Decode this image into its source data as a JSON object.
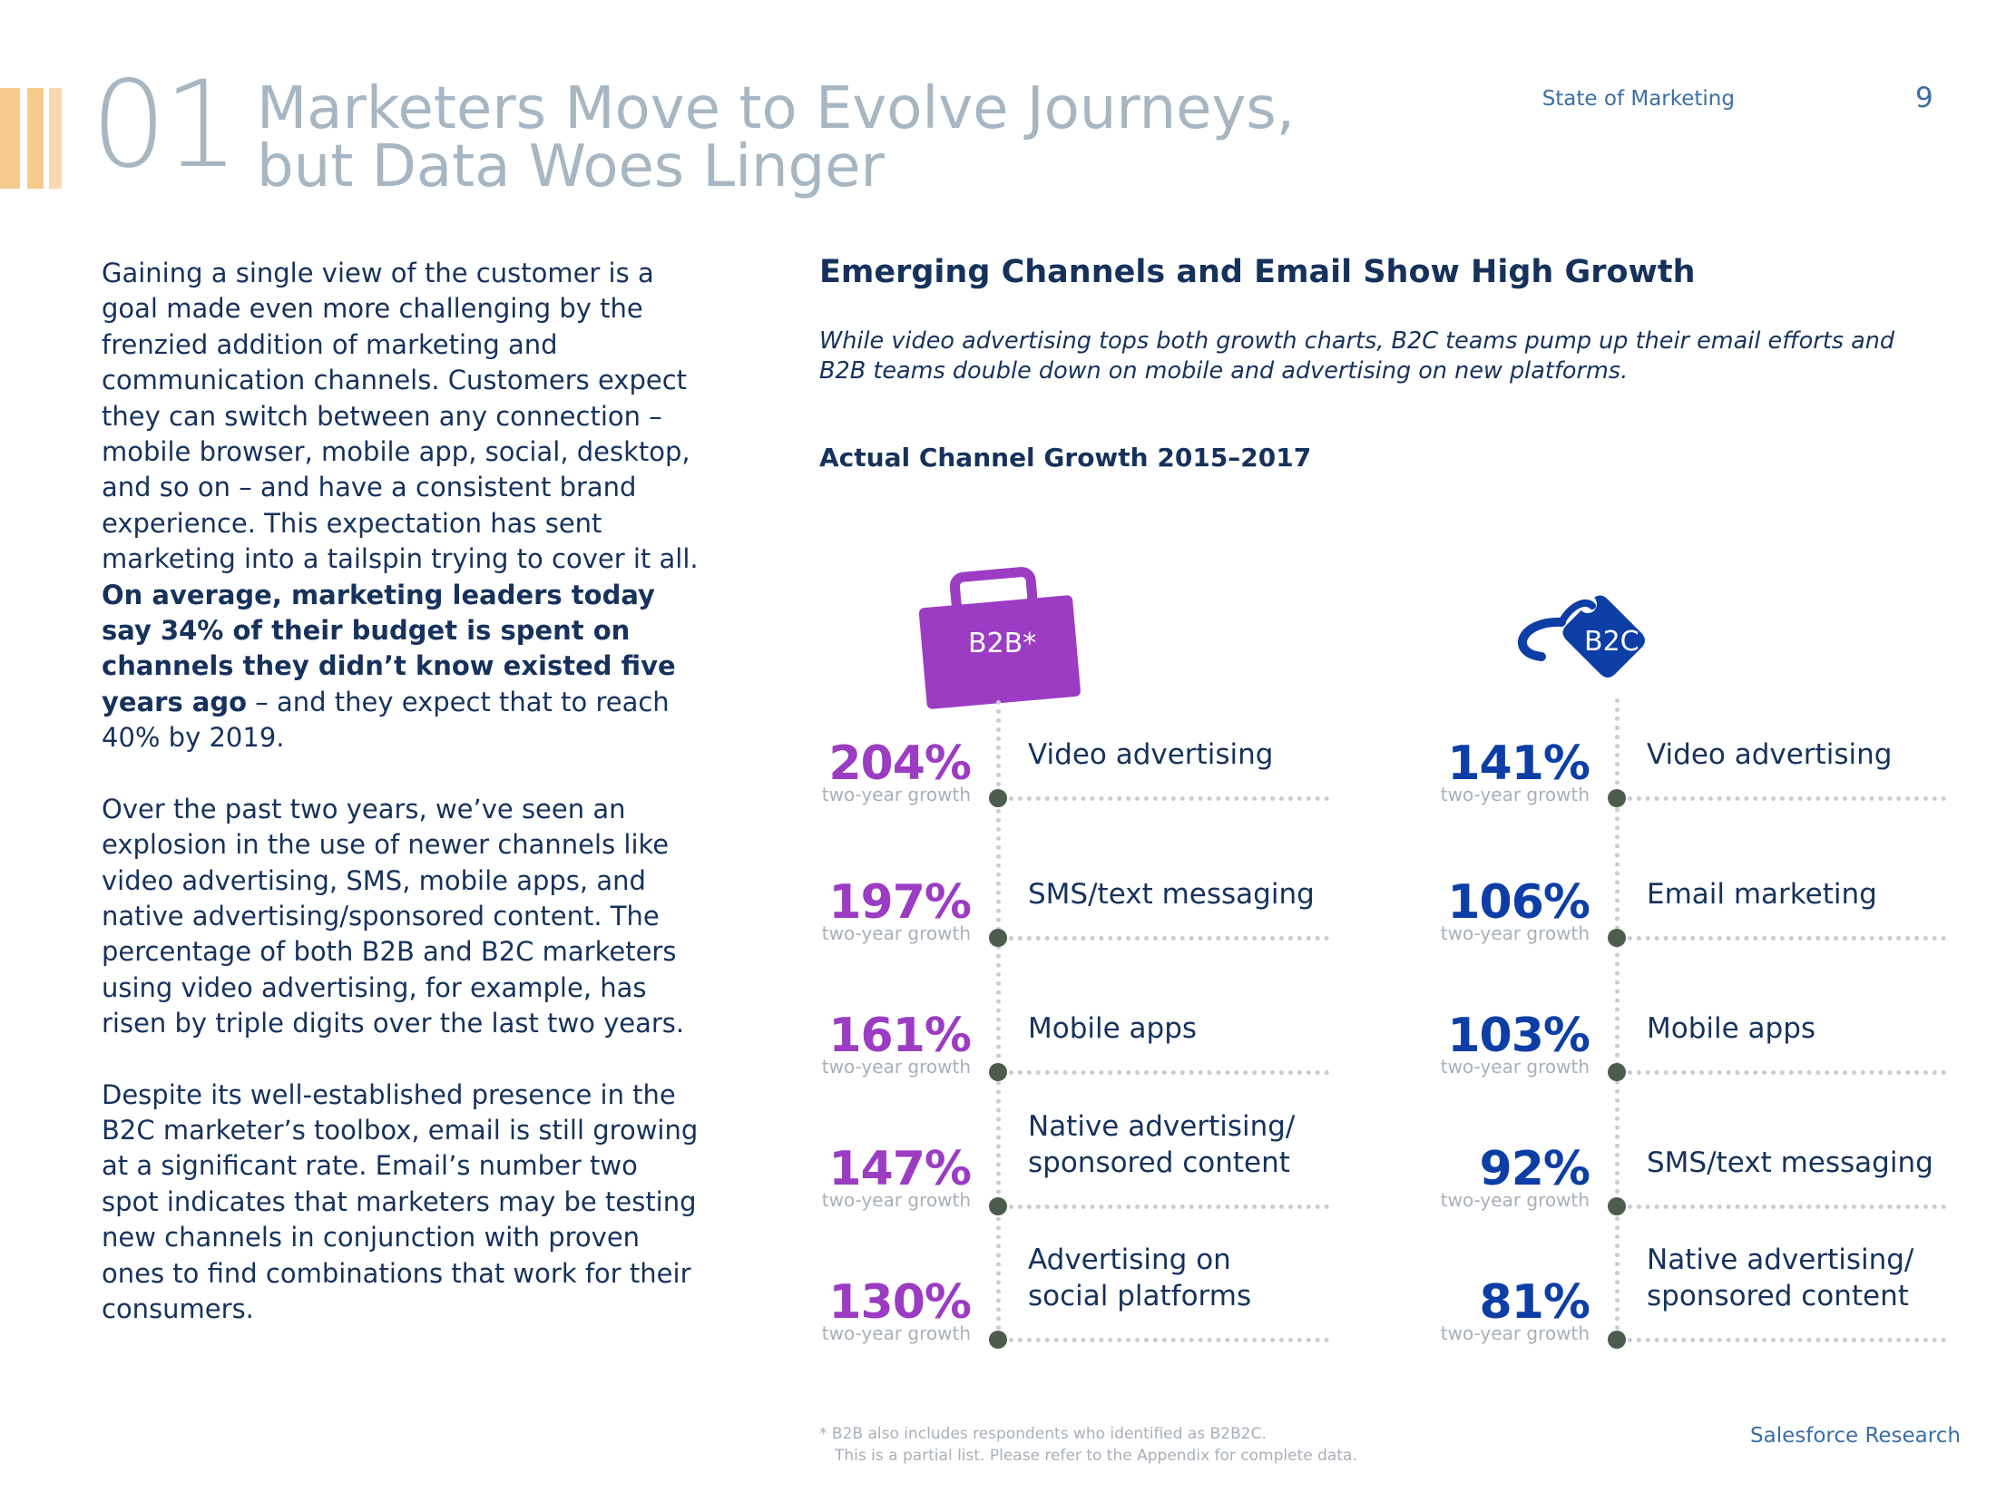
{
  "header": {
    "section_number": "01",
    "section_title_line1": "Marketers Move to Evolve Journeys,",
    "section_title_line2": "but Data Woes Linger",
    "running_head": "State of Marketing",
    "page_number": "9",
    "colors": {
      "accent_bars": [
        "#f6c98d",
        "#f9d9ad",
        "#fce6c8"
      ],
      "title": "#a7b6c3"
    }
  },
  "body": {
    "p1_start": "Gaining a single view of the customer is a goal made even more challenging by the frenzied addition of marketing and communication channels. Customers expect they can switch between any connection – mobile browser, mobile app, social, desktop, and so on – and have a consistent brand experience. This expectation has sent marketing into a tailspin trying to cover it all. ",
    "p1_bold": "On average, marketing leaders today say 34% of their budget is spent on channels they didn’t know existed five years ago",
    "p1_end": " – and they expect that to reach 40% by 2019.",
    "p2": "Over the past two years, we’ve seen an explosion in the use of newer channels like video advertising, SMS, mobile apps, and native advertising/sponsored content. The percentage of both B2B and B2C marketers using video advertising, for example, has risen by triple digits over the last two years.",
    "p3": "Despite its well-established presence in the B2C marketer’s toolbox, email is still growing at a significant rate. Email’s number two spot indicates that marketers may be testing new channels in conjunction with proven ones to find combinations that work for their consumers."
  },
  "chart_title": "Emerging Channels and Email Show High Growth",
  "chart_subtitle": "While video advertising tops both growth charts, B2C teams pump up their email efforts and B2B teams double down on mobile and advertising on new platforms.",
  "chart_heading": "Actual Channel Growth 2015–2017",
  "chart_data": {
    "type": "table",
    "title": "Actual Channel Growth 2015–2017",
    "metric_label": "two-year growth",
    "unit": "%",
    "series": [
      {
        "name": "B2B*",
        "color": "#9b3cc3",
        "rows": [
          {
            "value": 204,
            "display": "204%",
            "label_lines": [
              "Video advertising"
            ]
          },
          {
            "value": 197,
            "display": "197%",
            "label_lines": [
              "SMS/text messaging"
            ]
          },
          {
            "value": 161,
            "display": "161%",
            "label_lines": [
              "Mobile apps"
            ]
          },
          {
            "value": 147,
            "display": "147%",
            "label_lines": [
              "Native advertising/",
              "sponsored content"
            ]
          },
          {
            "value": 130,
            "display": "130%",
            "label_lines": [
              "Advertising on",
              "social platforms"
            ]
          }
        ]
      },
      {
        "name": "B2C",
        "color": "#0d3ea6",
        "rows": [
          {
            "value": 141,
            "display": "141%",
            "label_lines": [
              "Video advertising"
            ]
          },
          {
            "value": 106,
            "display": "106%",
            "label_lines": [
              "Email marketing"
            ]
          },
          {
            "value": 103,
            "display": "103%",
            "label_lines": [
              "Mobile apps"
            ]
          },
          {
            "value": 92,
            "display": "92%",
            "label_lines": [
              "SMS/text messaging"
            ]
          },
          {
            "value": 81,
            "display": "81%",
            "label_lines": [
              "Native advertising/",
              "sponsored content"
            ]
          }
        ]
      }
    ]
  },
  "footnote": {
    "line1": "*  B2B also includes respondents who identified as B2B2C.",
    "line2": "This is a partial list. Please refer to the Appendix for complete data."
  },
  "brand": "Salesforce Research",
  "icons": {
    "b2b": "briefcase-icon",
    "b2c": "price-tag-icon"
  }
}
